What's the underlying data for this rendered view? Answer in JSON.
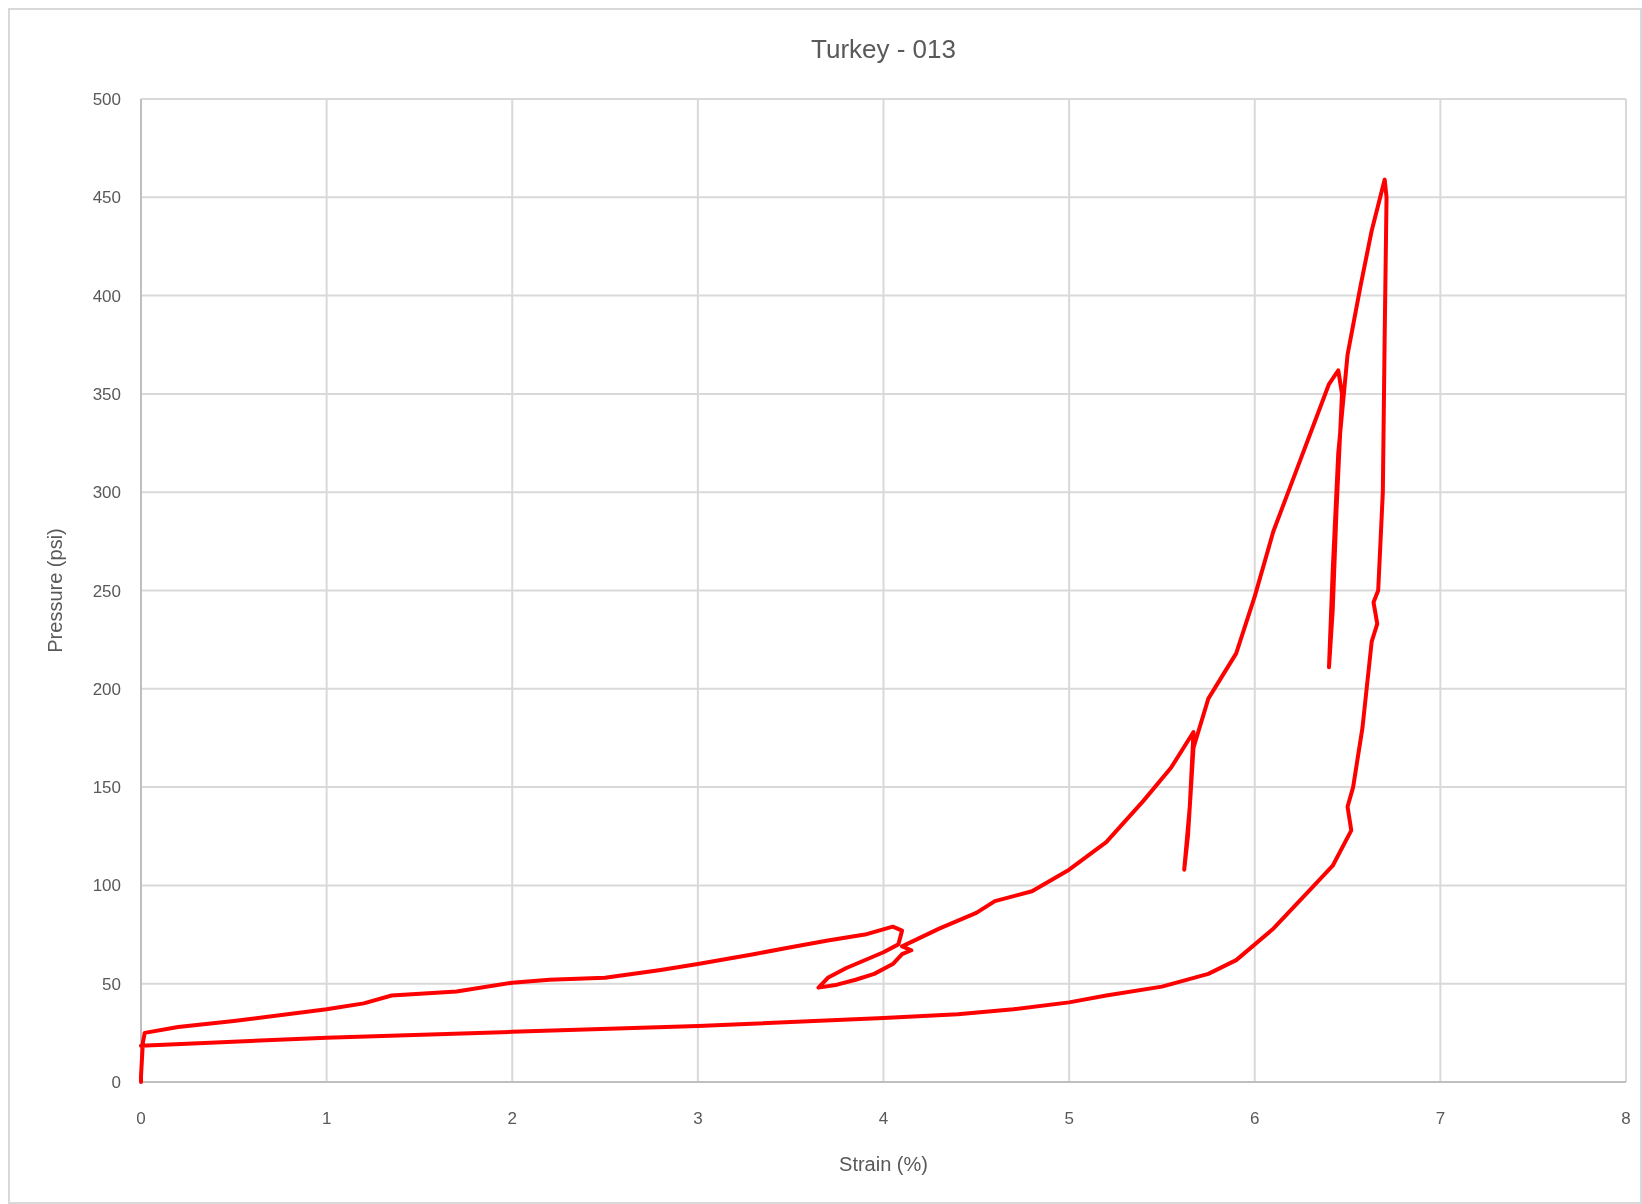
{
  "chart_data": {
    "type": "line",
    "title": "Turkey - 013",
    "xlabel": "Strain (%)",
    "ylabel": "Pressure (psi)",
    "xlim": [
      0,
      8
    ],
    "xticks": [
      0,
      1,
      2,
      3,
      4,
      5,
      6,
      7,
      8
    ],
    "ylim": [
      0,
      500
    ],
    "yticks": [
      0,
      50,
      100,
      150,
      200,
      250,
      300,
      350,
      400,
      450,
      500
    ],
    "grid": true,
    "marker": "none",
    "line_style": "solid",
    "series": [
      {
        "color": "#ff0000",
        "x": [
          0,
          0,
          0.01,
          0.02,
          0.2,
          0.5,
          1,
          1.2,
          1.35,
          1.7,
          2,
          2.2,
          2.5,
          2.8,
          3,
          3.3,
          3.5,
          3.7,
          3.9,
          4.05,
          4.1,
          4.08,
          4.0,
          3.8,
          3.7,
          3.65,
          3.75,
          3.85,
          3.95,
          4.05,
          4.1,
          4.15,
          4.1,
          4.3,
          4.5,
          4.6,
          4.8,
          5,
          5.2,
          5.4,
          5.55,
          5.67,
          5.65,
          5.62,
          5.64,
          5.67,
          5.75,
          5.9,
          6.0,
          6.1,
          6.2,
          6.3,
          6.4,
          6.45,
          6.47,
          6.44,
          6.42,
          6.4,
          6.42,
          6.45,
          6.5,
          6.57,
          6.63,
          6.7,
          6.71,
          6.7,
          6.69,
          6.665,
          6.64,
          6.66,
          6.63,
          6.58,
          6.53,
          6.5,
          6.52,
          6.42,
          6.3,
          6.1,
          5.9,
          5.75,
          5.5,
          5.2,
          5,
          4.7,
          4.4,
          4,
          3,
          2,
          1,
          0
        ],
        "values": [
          0,
          3,
          20,
          25,
          28,
          31,
          37,
          40,
          44,
          46,
          50.5,
          52,
          53,
          57,
          60,
          65,
          68.5,
          72,
          75,
          79,
          77,
          70,
          66,
          58,
          53,
          48,
          49.5,
          52,
          55,
          60,
          65,
          67,
          69,
          78,
          86,
          92,
          97,
          108,
          122,
          143,
          160,
          178,
          140,
          108,
          125,
          170,
          195,
          218,
          247,
          280,
          305,
          330,
          355,
          362,
          350,
          290,
          240,
          211,
          260,
          320,
          370,
          405,
          433,
          459,
          450,
          380,
          300,
          250,
          244,
          233,
          224,
          180,
          150,
          140,
          128,
          110,
          98,
          78,
          62,
          55,
          48.5,
          44,
          40.5,
          37,
          34.5,
          32.5,
          28.5,
          25.5,
          22.5,
          18.5
        ]
      }
    ]
  }
}
